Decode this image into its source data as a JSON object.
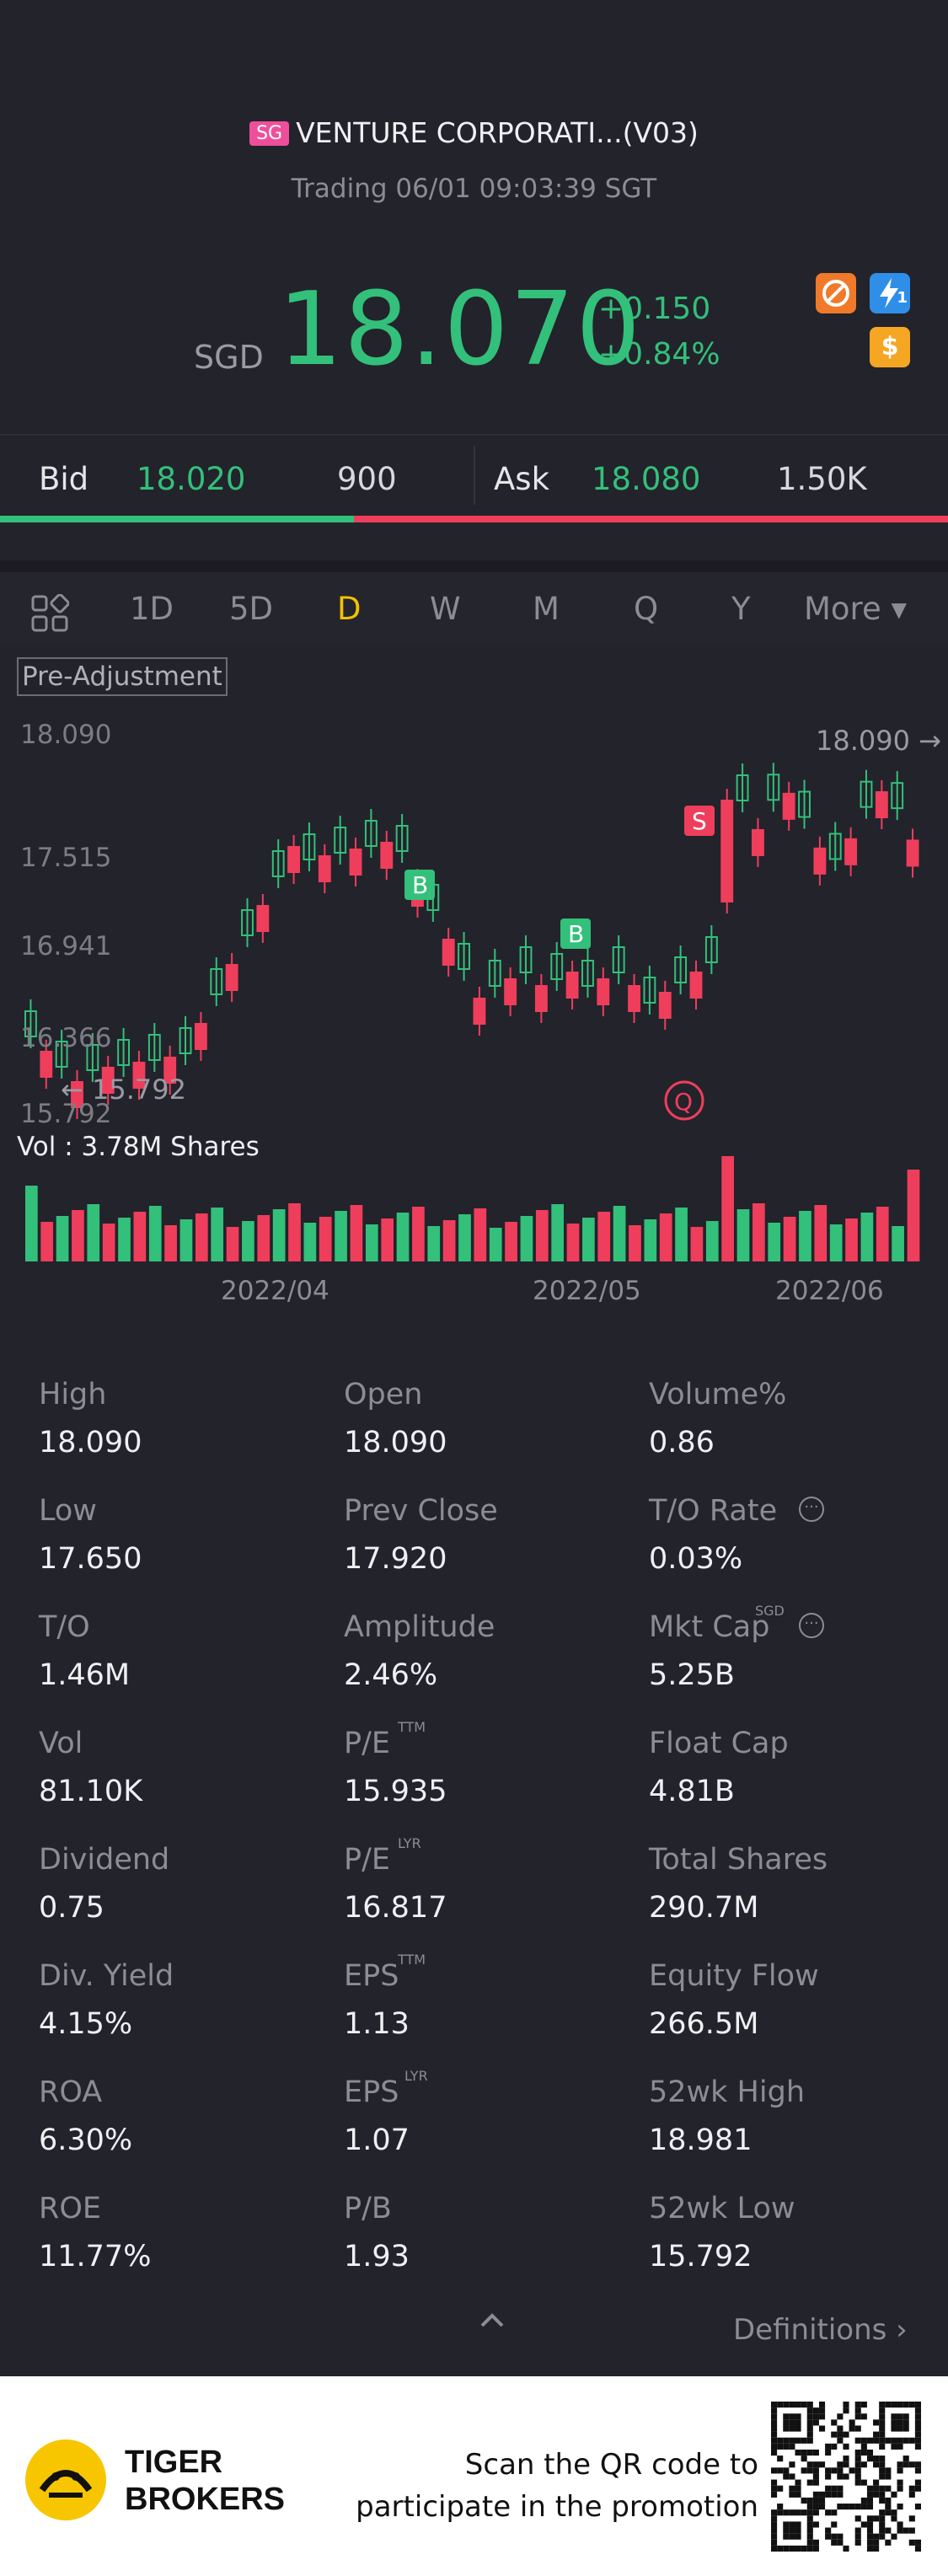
{
  "header": {
    "market_badge": "SG",
    "title": "VENTURE CORPORATI...(V03)",
    "status": "Trading 06/01 09:03:39 SGT",
    "currency": "SGD",
    "price": "18.070",
    "change": "+0.150",
    "change_pct": "+0.84%",
    "icons": [
      "no-margin-icon",
      "lightning-icon",
      "dollar-icon"
    ],
    "lightning_num": "1",
    "dollar_glyph": "$"
  },
  "bidask": {
    "bid_label": "Bid",
    "bid_price": "18.020",
    "bid_size": "900",
    "ask_label": "Ask",
    "ask_price": "18.080",
    "ask_size": "1.50K",
    "bid_share": 0.373
  },
  "tabs": [
    "1D",
    "5D",
    "D",
    "W",
    "M",
    "Q",
    "Y",
    "More ▾"
  ],
  "active_tab": "D",
  "chart_data": {
    "type": "candlestick",
    "pre_adjustment_label": "Pre-Adjustment",
    "y_ticks": [
      "18.090",
      "17.515",
      "16.941",
      "16.366",
      "15.792"
    ],
    "ylim": [
      15.792,
      18.09
    ],
    "high_label": "18.090",
    "low_label": "15.792",
    "x_ticks": [
      "2022/04",
      "2022/05",
      "2022/06"
    ],
    "volume_label": "Vol  : 3.78M Shares",
    "markers": [
      "B",
      "B",
      "S"
    ],
    "colors": {
      "up": "#33c07a",
      "down": "#ef3e5c"
    }
  },
  "stats": [
    [
      {
        "label": "High",
        "value": "18.090"
      },
      {
        "label": "Open",
        "value": "18.090"
      },
      {
        "label": "Volume%",
        "value": "0.86"
      }
    ],
    [
      {
        "label": "Low",
        "value": "17.650"
      },
      {
        "label": "Prev Close",
        "value": "17.920"
      },
      {
        "label": "T/O Rate",
        "value": "0.03%"
      }
    ],
    [
      {
        "label": "T/O",
        "value": "1.46M"
      },
      {
        "label": "Amplitude",
        "value": "2.46%"
      },
      {
        "label": "Mkt Cap",
        "value": "5.25B"
      }
    ],
    [
      {
        "label": "Vol",
        "value": "81.10K"
      },
      {
        "label": "P/E",
        "value": "15.935"
      },
      {
        "label": "Float Cap",
        "value": "4.81B"
      }
    ],
    [
      {
        "label": "Dividend",
        "value": "0.75"
      },
      {
        "label": "P/E",
        "value": "16.817"
      },
      {
        "label": "Total Shares",
        "value": "290.7M"
      }
    ],
    [
      {
        "label": "Div. Yield",
        "value": "4.15%"
      },
      {
        "label": "EPS",
        "value": "1.13"
      },
      {
        "label": "Equity Flow",
        "value": "266.5M"
      }
    ],
    [
      {
        "label": "ROA",
        "value": "6.30%"
      },
      {
        "label": "EPS",
        "value": "1.07"
      },
      {
        "label": "52wk High",
        "value": "18.981"
      }
    ],
    [
      {
        "label": "ROE",
        "value": "11.77%"
      },
      {
        "label": "P/B",
        "value": "1.93"
      },
      {
        "label": "52wk Low",
        "value": "15.792"
      }
    ]
  ],
  "sups": {
    "ttm": "TTM",
    "lyr": "LYR",
    "sgd": "SGD"
  },
  "definitions": "Definitions ›",
  "footer": {
    "brand_line1": "TIGER",
    "brand_line2": "BROKERS",
    "promo_line1": "Scan the QR code to",
    "promo_line2": "participate in the promotion"
  }
}
